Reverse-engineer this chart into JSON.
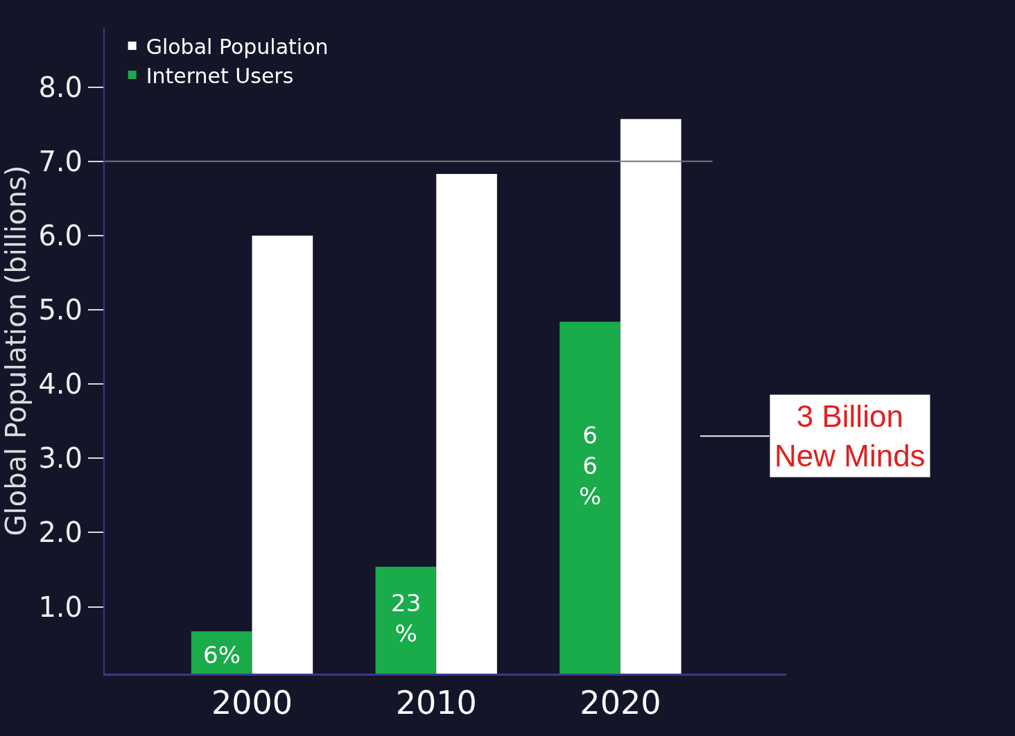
{
  "chart_data": {
    "type": "bar",
    "ylabel": "Global Population (billions)",
    "categories": [
      "2000",
      "2010",
      "2020"
    ],
    "series": [
      {
        "name": "Internet Users",
        "color": "#1aab4b",
        "values": [
          0.67,
          1.54,
          4.84
        ]
      },
      {
        "name": "Global Population",
        "color": "#ffffff",
        "values": [
          6.0,
          6.83,
          7.57
        ]
      }
    ],
    "ylim": [
      0.1,
      8.8
    ],
    "yticks": [
      {
        "value": 1,
        "label": "1.0"
      },
      {
        "value": 2,
        "label": "2.0"
      },
      {
        "value": 3,
        "label": "3.0"
      },
      {
        "value": 4,
        "label": "4.0"
      },
      {
        "value": 5,
        "label": "5.0"
      },
      {
        "value": 6,
        "label": "6.0"
      },
      {
        "value": 7,
        "label": "7.0"
      },
      {
        "value": 8,
        "label": "8.0"
      }
    ],
    "ref_lines": [
      {
        "axis": "y",
        "value": 7,
        "color": "#777777"
      }
    ],
    "annotations": [
      {
        "text": "3 Billion\nNew Minds",
        "x": "2020",
        "y": 3.3
      },
      {
        "text": "6%",
        "x": "2000",
        "y": 0.35
      },
      {
        "text": "23\n%",
        "x": "2010",
        "y": 0.85
      },
      {
        "text": "6\n6\n%",
        "x": "2020",
        "y": 2.9
      }
    ],
    "legend": "top left",
    "grid": false
  }
}
